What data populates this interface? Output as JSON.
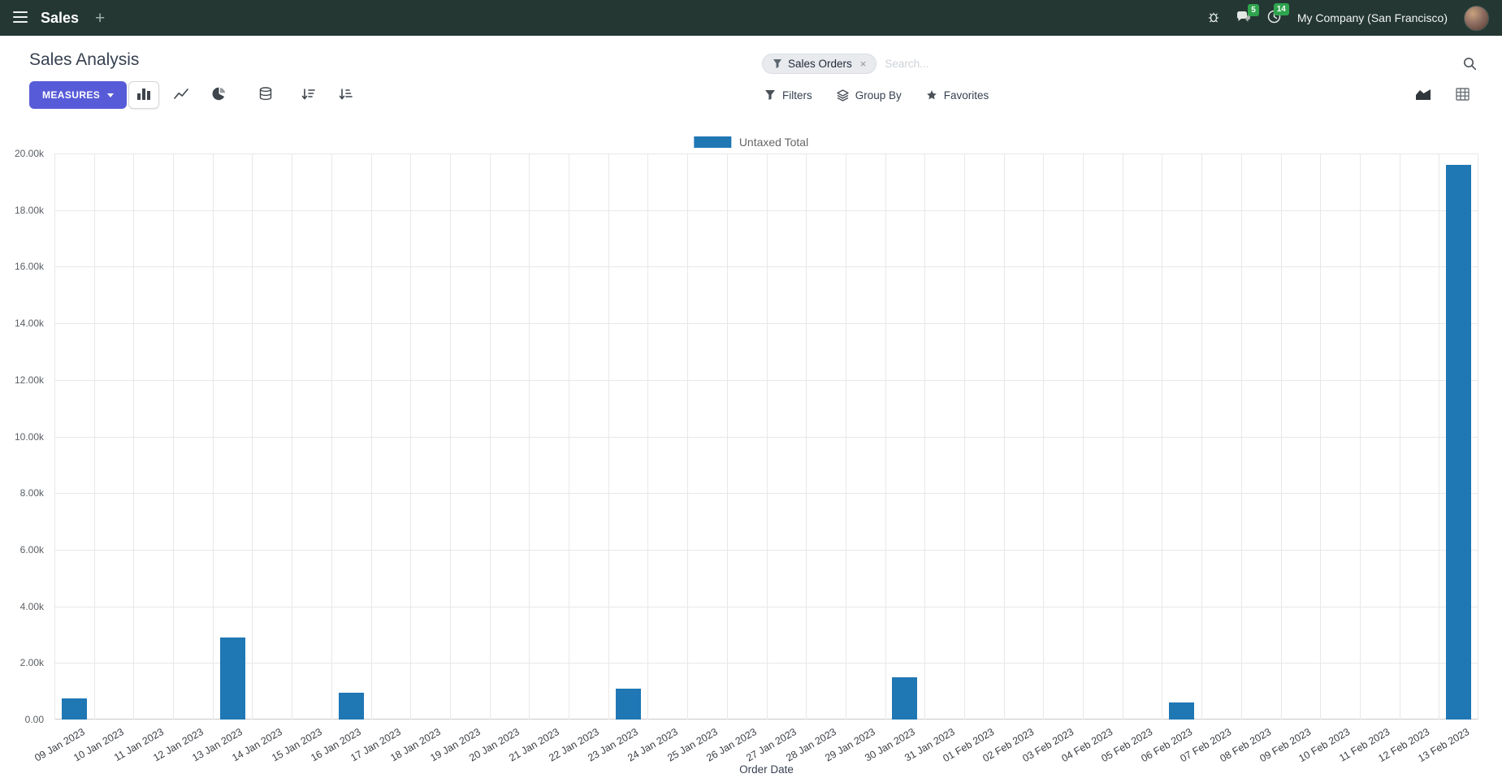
{
  "topbar": {
    "app_name": "Sales",
    "plus_label": "+",
    "company_name": "My Company (San Francisco)",
    "badges": {
      "messages": "5",
      "activities": "14"
    }
  },
  "control_panel": {
    "title": "Sales Analysis",
    "measures_label": "MEASURES",
    "filters_label": "Filters",
    "group_by_label": "Group By",
    "favorites_label": "Favorites",
    "search": {
      "facet_label": "Sales Orders",
      "facet_remove": "×",
      "placeholder": "Search..."
    }
  },
  "chart_data": {
    "type": "bar",
    "title": "",
    "xlabel": "Order Date",
    "ylabel": "",
    "ylim": [
      0,
      20000
    ],
    "grid": true,
    "legend_position": "top",
    "y_ticks": [
      "0.00",
      "2.00k",
      "4.00k",
      "6.00k",
      "8.00k",
      "10.00k",
      "12.00k",
      "14.00k",
      "16.00k",
      "18.00k",
      "20.00k"
    ],
    "legend": [
      {
        "label": "Untaxed Total",
        "color": "#1f77b4"
      }
    ],
    "categories": [
      "09 Jan 2023",
      "10 Jan 2023",
      "11 Jan 2023",
      "12 Jan 2023",
      "13 Jan 2023",
      "14 Jan 2023",
      "15 Jan 2023",
      "16 Jan 2023",
      "17 Jan 2023",
      "18 Jan 2023",
      "19 Jan 2023",
      "20 Jan 2023",
      "21 Jan 2023",
      "22 Jan 2023",
      "23 Jan 2023",
      "24 Jan 2023",
      "25 Jan 2023",
      "26 Jan 2023",
      "27 Jan 2023",
      "28 Jan 2023",
      "29 Jan 2023",
      "30 Jan 2023",
      "31 Jan 2023",
      "01 Feb 2023",
      "02 Feb 2023",
      "03 Feb 2023",
      "04 Feb 2023",
      "05 Feb 2023",
      "06 Feb 2023",
      "07 Feb 2023",
      "08 Feb 2023",
      "09 Feb 2023",
      "10 Feb 2023",
      "11 Feb 2023",
      "12 Feb 2023",
      "13 Feb 2023"
    ],
    "series": [
      {
        "name": "Untaxed Total",
        "color": "#1f77b4",
        "values": [
          750,
          0,
          0,
          0,
          2900,
          0,
          0,
          950,
          0,
          0,
          0,
          0,
          0,
          0,
          1100,
          0,
          0,
          0,
          0,
          0,
          0,
          1500,
          0,
          0,
          0,
          0,
          0,
          0,
          600,
          0,
          0,
          0,
          0,
          0,
          0,
          19600
        ]
      }
    ]
  },
  "colors": {
    "navbar": "#243733",
    "accent": "#585bd8",
    "bar": "#1f77b4",
    "badge_green": "#2fa44e"
  }
}
